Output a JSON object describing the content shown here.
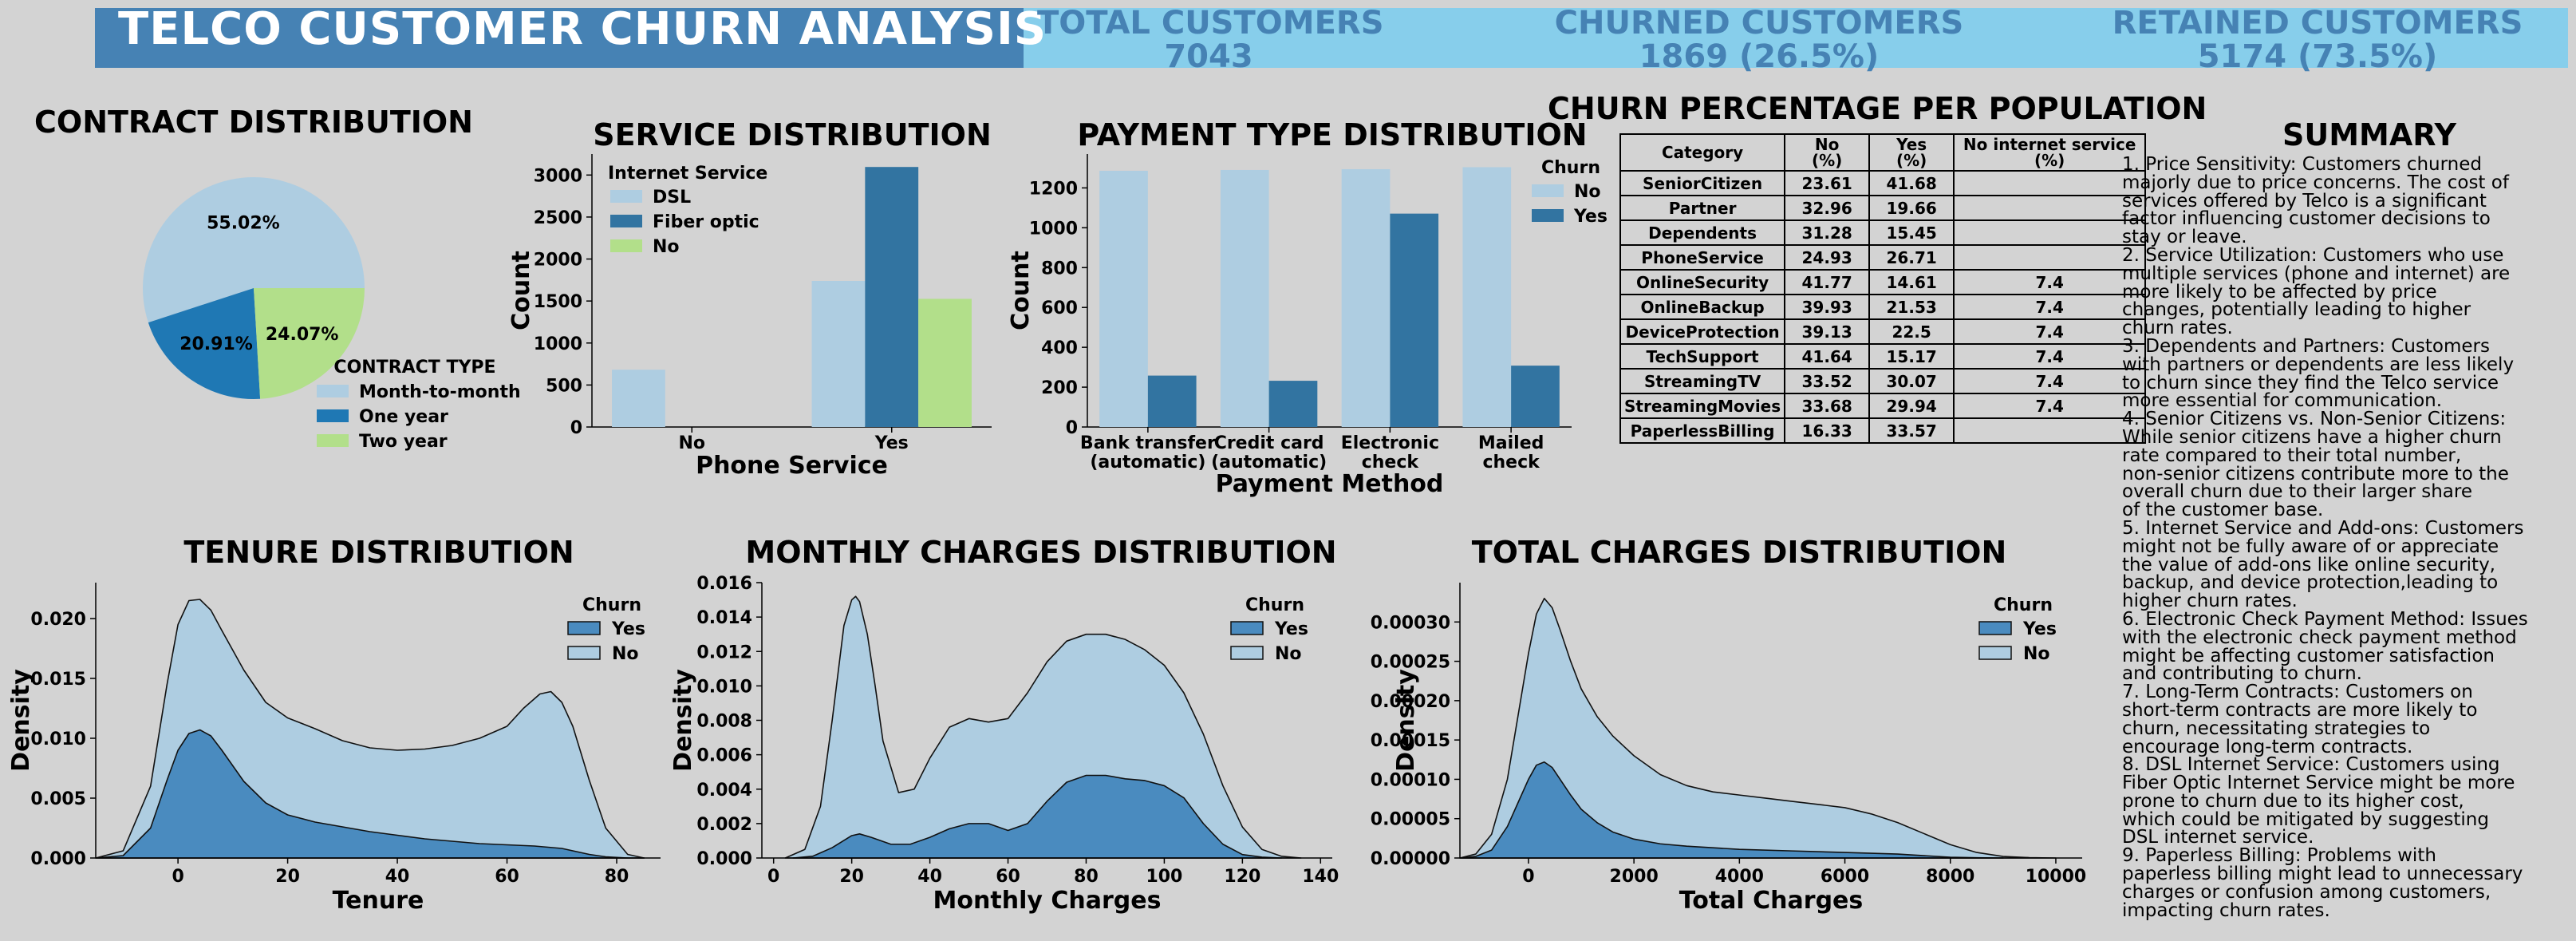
{
  "header": {
    "title": "TELCO CUSTOMER CHURN ANALYSIS",
    "kpis": [
      {
        "label": "TOTAL CUSTOMERS",
        "value": "7043"
      },
      {
        "label": "CHURNED CUSTOMERS",
        "value": "1869 (26.5%)"
      },
      {
        "label": "RETAINED CUSTOMERS",
        "value": "5174 (73.5%)"
      }
    ]
  },
  "colors": {
    "banner_dark": "#4682b4",
    "banner_light": "#87ceeb",
    "light_blue": "#aecde1",
    "mid_blue": "#3274a1",
    "green": "#b2df8a",
    "background": "#d3d3d3"
  },
  "chart_data": [
    {
      "id": "contract",
      "type": "pie",
      "title": "CONTRACT DISTRIBUTION",
      "legend_title": "CONTRACT TYPE",
      "labels": [
        "Month-to-month",
        "One year",
        "Two year"
      ],
      "values": [
        55.02,
        20.91,
        24.07
      ],
      "value_labels": [
        "55.02%",
        "20.91%",
        "24.07%"
      ],
      "colors": [
        "#aecde1",
        "#1f78b4",
        "#b2df8a"
      ],
      "legend_position": "lower-right"
    },
    {
      "id": "service",
      "type": "bar",
      "title": "SERVICE DISTRIBUTION",
      "xlabel": "Phone Service",
      "ylabel": "Count",
      "categories": [
        "No",
        "Yes"
      ],
      "legend_title": "Internet Service",
      "series": [
        {
          "name": "DSL",
          "values": [
            682,
            1739
          ],
          "color": "#aecde1"
        },
        {
          "name": "Fiber optic",
          "values": [
            0,
            3096
          ],
          "color": "#3274a1"
        },
        {
          "name": "No",
          "values": [
            0,
            1526
          ],
          "color": "#b2df8a"
        }
      ],
      "ylim": [
        0,
        3250
      ],
      "yticks": [
        "0",
        "500",
        "1000",
        "1500",
        "2000",
        "2500",
        "3000"
      ],
      "legend_position": "top-left"
    },
    {
      "id": "payment",
      "type": "bar",
      "title": "PAYMENT TYPE DISTRIBUTION",
      "xlabel": "Payment Method",
      "ylabel": "Count",
      "categories": [
        "Bank transfer\n(automatic)",
        "Credit card\n(automatic)",
        "Electronic\ncheck",
        "Mailed\ncheck"
      ],
      "legend_title": "Churn",
      "series": [
        {
          "name": "No",
          "values": [
            1286,
            1290,
            1294,
            1304
          ],
          "color": "#aecde1"
        },
        {
          "name": "Yes",
          "values": [
            258,
            232,
            1071,
            308
          ],
          "color": "#3274a1"
        }
      ],
      "ylim": [
        0,
        1370
      ],
      "yticks": [
        "0",
        "200",
        "400",
        "600",
        "800",
        "1000",
        "1200"
      ],
      "legend_position": "top-right"
    },
    {
      "id": "tenure",
      "type": "area",
      "title": "TENURE DISTRIBUTION",
      "xlabel": "Tenure",
      "ylabel": "Density",
      "xlim": [
        -15,
        88
      ],
      "ylim": [
        0,
        0.023
      ],
      "xticks": [
        "0",
        "20",
        "40",
        "60",
        "80"
      ],
      "yticks": [
        "0.000",
        "0.005",
        "0.010",
        "0.015",
        "0.020"
      ],
      "legend_title": "Churn",
      "series": [
        {
          "name": "Yes",
          "color": "#4a8bbf",
          "x": [
            -15,
            -10,
            -5,
            -2,
            0,
            2,
            4,
            6,
            8,
            12,
            16,
            20,
            25,
            30,
            35,
            40,
            45,
            50,
            55,
            60,
            65,
            70,
            72,
            75,
            78,
            82,
            85
          ],
          "y": [
            0,
            0.0002,
            0.0025,
            0.0065,
            0.009,
            0.0104,
            0.0107,
            0.0102,
            0.009,
            0.0064,
            0.0046,
            0.0036,
            0.003,
            0.0026,
            0.0022,
            0.0019,
            0.0016,
            0.0014,
            0.0012,
            0.0011,
            0.001,
            0.0008,
            0.0006,
            0.0003,
            0.0001,
            0,
            0
          ]
        },
        {
          "name": "No",
          "color": "#aecde1",
          "x": [
            -15,
            -10,
            -5,
            -2,
            0,
            2,
            4,
            6,
            8,
            12,
            16,
            20,
            25,
            30,
            35,
            40,
            45,
            50,
            55,
            60,
            63,
            66,
            68,
            70,
            72,
            75,
            78,
            82,
            85
          ],
          "y": [
            0,
            0.0006,
            0.006,
            0.0145,
            0.0195,
            0.0215,
            0.0216,
            0.0207,
            0.019,
            0.0157,
            0.013,
            0.0117,
            0.0108,
            0.0098,
            0.0092,
            0.009,
            0.0091,
            0.0094,
            0.01,
            0.011,
            0.0125,
            0.0137,
            0.0139,
            0.013,
            0.011,
            0.0065,
            0.0025,
            0.0003,
            0
          ]
        }
      ],
      "legend_position": "top-right"
    },
    {
      "id": "monthly",
      "type": "area",
      "title": "MONTHLY CHARGES DISTRIBUTION",
      "xlabel": "Monthly Charges",
      "ylabel": "Density",
      "xlim": [
        -3,
        143
      ],
      "ylim": [
        0,
        0.016
      ],
      "xticks": [
        "0",
        "20",
        "40",
        "60",
        "80",
        "100",
        "120",
        "140"
      ],
      "yticks": [
        "0.000",
        "0.002",
        "0.004",
        "0.006",
        "0.008",
        "0.010",
        "0.012",
        "0.014",
        "0.016"
      ],
      "legend_title": "Churn",
      "series": [
        {
          "name": "Yes",
          "color": "#4a8bbf",
          "x": [
            5,
            10,
            15,
            20,
            22,
            25,
            30,
            35,
            40,
            45,
            50,
            55,
            60,
            65,
            70,
            75,
            80,
            85,
            90,
            95,
            100,
            105,
            110,
            115,
            120,
            125,
            130
          ],
          "y": [
            0,
            0.0001,
            0.0006,
            0.0013,
            0.0014,
            0.0012,
            0.0008,
            0.0008,
            0.0012,
            0.0017,
            0.002,
            0.002,
            0.0016,
            0.002,
            0.0033,
            0.0044,
            0.0048,
            0.0048,
            0.0046,
            0.0045,
            0.0042,
            0.0035,
            0.002,
            0.0008,
            0.0002,
            5e-05,
            0
          ]
        },
        {
          "name": "No",
          "color": "#aecde1",
          "x": [
            3,
            8,
            12,
            15,
            18,
            20,
            21,
            22,
            24,
            26,
            28,
            32,
            36,
            40,
            45,
            50,
            55,
            60,
            65,
            70,
            75,
            80,
            85,
            90,
            95,
            100,
            105,
            110,
            115,
            120,
            125,
            130,
            135
          ],
          "y": [
            0,
            0.0005,
            0.003,
            0.008,
            0.0135,
            0.015,
            0.0152,
            0.0149,
            0.013,
            0.01,
            0.0068,
            0.0038,
            0.004,
            0.0058,
            0.0076,
            0.0081,
            0.0079,
            0.0081,
            0.0096,
            0.0114,
            0.0126,
            0.013,
            0.013,
            0.0127,
            0.0121,
            0.0112,
            0.0096,
            0.0072,
            0.0042,
            0.0018,
            0.0005,
            0.0001,
            0
          ]
        }
      ],
      "legend_position": "top-right"
    },
    {
      "id": "total",
      "type": "area",
      "title": "TOTAL CHARGES DISTRIBUTION",
      "xlabel": "Total Charges",
      "ylabel": "Density",
      "xlim": [
        -1300,
        10500
      ],
      "ylim": [
        0,
        0.00035
      ],
      "xticks": [
        "0",
        "2000",
        "4000",
        "6000",
        "8000",
        "10000"
      ],
      "yticks": [
        "0.00000",
        "0.00005",
        "0.00010",
        "0.00015",
        "0.00020",
        "0.00025",
        "0.00030"
      ],
      "legend_title": "Churn",
      "series": [
        {
          "name": "Yes",
          "color": "#4a8bbf",
          "x": [
            -1300,
            -1000,
            -700,
            -400,
            -200,
            0,
            150,
            300,
            450,
            600,
            800,
            1000,
            1300,
            1600,
            2000,
            2500,
            3000,
            4000,
            5000,
            6000,
            7000,
            7500,
            8000,
            8500,
            9000
          ],
          "y": [
            0,
            2e-06,
            1e-05,
            4e-05,
            7e-05,
            0.0001,
            0.000118,
            0.000122,
            0.000115,
            0.0001,
            8e-05,
            6.2e-05,
            4.5e-05,
            3.3e-05,
            2.4e-05,
            1.8e-05,
            1.5e-05,
            1.1e-05,
            9e-06,
            7e-06,
            5e-06,
            3e-06,
            1e-06,
            3e-07,
            0
          ]
        },
        {
          "name": "No",
          "color": "#aecde1",
          "x": [
            -1300,
            -1000,
            -700,
            -400,
            -200,
            0,
            150,
            300,
            450,
            600,
            800,
            1000,
            1300,
            1600,
            2000,
            2500,
            3000,
            3500,
            4000,
            4500,
            5000,
            5500,
            6000,
            6500,
            7000,
            7500,
            8000,
            8500,
            9000,
            9500,
            10000
          ],
          "y": [
            0,
            5e-06,
            3e-05,
            0.0001,
            0.00018,
            0.00026,
            0.00031,
            0.00033,
            0.000318,
            0.00029,
            0.00025,
            0.000215,
            0.00018,
            0.000155,
            0.00013,
            0.000106,
            9.2e-05,
            8.4e-05,
            8e-05,
            7.6e-05,
            7.2e-05,
            6.8e-05,
            6.4e-05,
            5.6e-05,
            4.5e-05,
            3.1e-05,
            1.7e-05,
            7e-06,
            2e-06,
            5e-07,
            0
          ]
        }
      ],
      "legend_position": "top-right"
    }
  ],
  "churn_table": {
    "title": "CHURN PERCENTAGE PER POPULATION",
    "headers": [
      "Category",
      "No\n(%)",
      "Yes\n(%)",
      "No internet service\n(%)"
    ],
    "rows": [
      [
        "SeniorCitizen",
        "23.61",
        "41.68",
        ""
      ],
      [
        "Partner",
        "32.96",
        "19.66",
        ""
      ],
      [
        "Dependents",
        "31.28",
        "15.45",
        ""
      ],
      [
        "PhoneService",
        "24.93",
        "26.71",
        ""
      ],
      [
        "OnlineSecurity",
        "41.77",
        "14.61",
        "7.4"
      ],
      [
        "OnlineBackup",
        "39.93",
        "21.53",
        "7.4"
      ],
      [
        "DeviceProtection",
        "39.13",
        "22.5",
        "7.4"
      ],
      [
        "TechSupport",
        "41.64",
        "15.17",
        "7.4"
      ],
      [
        "StreamingTV",
        "33.52",
        "30.07",
        "7.4"
      ],
      [
        "StreamingMovies",
        "33.68",
        "29.94",
        "7.4"
      ],
      [
        "PaperlessBilling",
        "16.33",
        "33.57",
        ""
      ]
    ]
  },
  "summary": {
    "title": "SUMMARY",
    "lines": [
      "1. Price Sensitivity: Customers churned",
      "majorly due to price concerns. The cost of",
      "services offered by Telco is a significant",
      "factor influencing customer decisions to",
      "stay or leave.",
      "2. Service Utilization: Customers who use",
      "multiple services (phone and internet) are",
      "more likely to be affected by price",
      "changes, potentially leading to higher",
      "churn rates.",
      "3. Dependents and Partners: Customers",
      "with partners or dependents are less likely",
      "to churn since they find the Telco service",
      "more essential for communication.",
      "4. Senior Citizens vs. Non-Senior Citizens:",
      "While senior citizens have a higher churn",
      "rate compared to their total number,",
      "non-senior citizens contribute more to the",
      "overall churn due to their larger share",
      "of the customer base.",
      "5. Internet Service and Add-ons: Customers",
      "might not be fully aware of or appreciate",
      "the value of add-ons like online security,",
      "backup, and device protection,leading to",
      "higher churn rates.",
      "6. Electronic Check Payment Method: Issues",
      "with the electronic check payment method",
      "might be affecting customer satisfaction",
      "and contributing to churn.",
      "7. Long-Term Contracts: Customers on",
      "short-term contracts are more likely to",
      "churn, necessitating strategies to",
      "encourage long-term contracts.",
      "8. DSL Internet Service: Customers using",
      "Fiber Optic Internet Service might be more",
      "prone to churn due to its higher cost,",
      "which could be mitigated by suggesting",
      "DSL internet service.",
      "9. Paperless Billing: Problems with",
      "paperless billing might lead to unnecessary",
      "charges or confusion among customers,",
      "impacting churn rates."
    ]
  }
}
